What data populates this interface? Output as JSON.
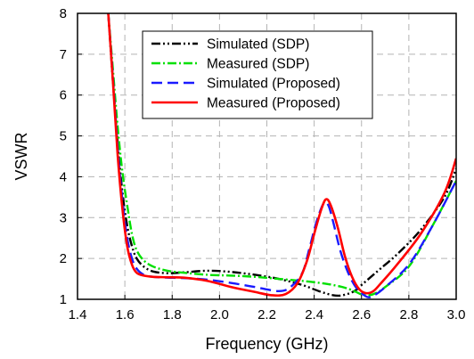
{
  "chart_data": {
    "type": "line",
    "xlabel": "Frequency (GHz)",
    "ylabel": "VSWR",
    "xlim": [
      1.4,
      3.0
    ],
    "ylim": [
      1,
      8
    ],
    "xticks": [
      "1.4",
      "1.6",
      "1.8",
      "2.0",
      "2.2",
      "2.4",
      "2.6",
      "2.8",
      "3.0"
    ],
    "yticks": [
      "1",
      "2",
      "3",
      "4",
      "5",
      "6",
      "7",
      "8"
    ],
    "grid": true,
    "legend_position": "top-right",
    "series": [
      {
        "name": "Simulated (SDP)",
        "color": "#000000",
        "style": "dash-dot-dot",
        "x": [
          1.53,
          1.55,
          1.57,
          1.59,
          1.61,
          1.63,
          1.65,
          1.68,
          1.72,
          1.78,
          1.85,
          1.95,
          2.05,
          2.15,
          2.25,
          2.35,
          2.42,
          2.48,
          2.52,
          2.57,
          2.6,
          2.63,
          2.68,
          2.75,
          2.85,
          2.95,
          3.0
        ],
        "y": [
          8.0,
          6.3,
          4.8,
          3.6,
          2.8,
          2.3,
          2.0,
          1.8,
          1.68,
          1.64,
          1.66,
          1.7,
          1.67,
          1.6,
          1.5,
          1.35,
          1.2,
          1.1,
          1.1,
          1.2,
          1.35,
          1.5,
          1.75,
          2.1,
          2.7,
          3.5,
          4.2
        ]
      },
      {
        "name": "Measured (SDP)",
        "color": "#00e000",
        "style": "dash-dot",
        "x": [
          1.53,
          1.55,
          1.57,
          1.59,
          1.61,
          1.63,
          1.65,
          1.68,
          1.72,
          1.78,
          1.85,
          1.95,
          2.05,
          2.15,
          2.25,
          2.35,
          2.45,
          2.52,
          2.57,
          2.6,
          2.63,
          2.66,
          2.7,
          2.8,
          2.9,
          3.0
        ],
        "y": [
          8.0,
          6.6,
          5.2,
          4.1,
          3.3,
          2.6,
          2.2,
          1.95,
          1.8,
          1.7,
          1.65,
          1.6,
          1.58,
          1.55,
          1.5,
          1.45,
          1.38,
          1.3,
          1.2,
          1.12,
          1.1,
          1.15,
          1.3,
          1.8,
          2.8,
          3.9
        ]
      },
      {
        "name": "Simulated (Proposed)",
        "color": "#1a1aff",
        "style": "dash",
        "x": [
          1.53,
          1.55,
          1.57,
          1.59,
          1.61,
          1.63,
          1.65,
          1.68,
          1.72,
          1.78,
          1.85,
          1.95,
          2.05,
          2.15,
          2.25,
          2.3,
          2.35,
          2.38,
          2.41,
          2.44,
          2.46,
          2.48,
          2.51,
          2.54,
          2.57,
          2.6,
          2.63,
          2.66,
          2.7,
          2.8,
          2.9,
          3.0
        ],
        "y": [
          8.0,
          6.4,
          4.7,
          3.4,
          2.5,
          2.0,
          1.75,
          1.6,
          1.55,
          1.53,
          1.52,
          1.48,
          1.4,
          1.3,
          1.2,
          1.3,
          1.65,
          2.25,
          2.9,
          3.35,
          3.3,
          2.9,
          2.2,
          1.7,
          1.35,
          1.15,
          1.05,
          1.12,
          1.3,
          1.85,
          2.8,
          3.9
        ]
      },
      {
        "name": "Measured (Proposed)",
        "color": "#ff0000",
        "style": "solid",
        "x": [
          1.53,
          1.55,
          1.57,
          1.59,
          1.61,
          1.63,
          1.65,
          1.68,
          1.72,
          1.78,
          1.85,
          1.95,
          2.05,
          2.15,
          2.22,
          2.28,
          2.33,
          2.37,
          2.4,
          2.43,
          2.45,
          2.47,
          2.5,
          2.53,
          2.56,
          2.59,
          2.62,
          2.65,
          2.68,
          2.75,
          2.85,
          2.95,
          3.0
        ],
        "y": [
          8.0,
          6.3,
          4.5,
          3.2,
          2.3,
          1.85,
          1.65,
          1.58,
          1.55,
          1.54,
          1.53,
          1.45,
          1.3,
          1.18,
          1.1,
          1.13,
          1.4,
          1.95,
          2.6,
          3.2,
          3.45,
          3.3,
          2.75,
          2.05,
          1.55,
          1.25,
          1.15,
          1.2,
          1.38,
          1.85,
          2.6,
          3.6,
          4.45
        ]
      }
    ]
  }
}
